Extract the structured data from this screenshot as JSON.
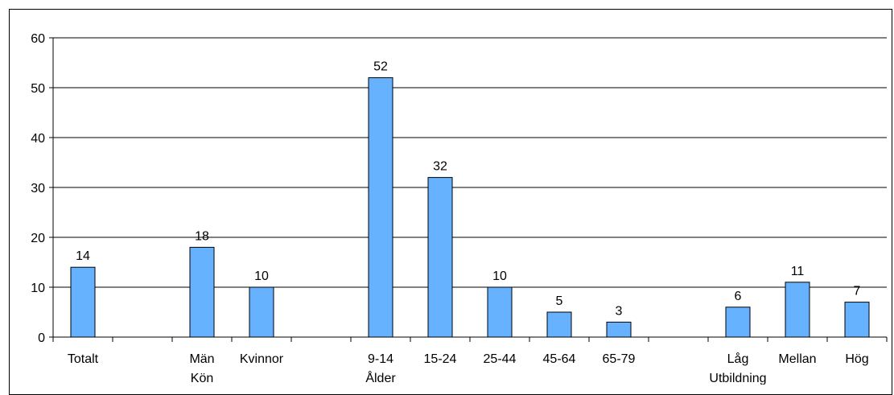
{
  "chart_data": {
    "type": "bar",
    "categories": [
      "Totalt",
      "",
      "Män",
      "Kvinnor",
      "",
      "9-14",
      "15-24",
      "25-44",
      "45-64",
      "65-79",
      "",
      "Låg",
      "Mellan",
      "Hög"
    ],
    "values": [
      14,
      null,
      18,
      10,
      null,
      52,
      32,
      10,
      5,
      3,
      null,
      6,
      11,
      7
    ],
    "data_labels": [
      "14",
      "",
      "18",
      "10",
      "",
      "52",
      "32",
      "10",
      "5",
      "3",
      "",
      "6",
      "11",
      "7"
    ],
    "groups": [
      {
        "label": "Kön",
        "under": "Män"
      },
      {
        "label": "Ålder",
        "under": "9-14"
      },
      {
        "label": "Utbildning",
        "under": "Låg"
      }
    ],
    "title": "",
    "xlabel": "",
    "ylabel": "",
    "ylim": [
      0,
      60
    ],
    "yticks": [
      0,
      10,
      20,
      30,
      40,
      50,
      60
    ],
    "grid": true,
    "legend": "none",
    "colors": {
      "bar_fill": "#66B2FF",
      "bar_stroke": "#000000",
      "grid": "#000000"
    }
  }
}
